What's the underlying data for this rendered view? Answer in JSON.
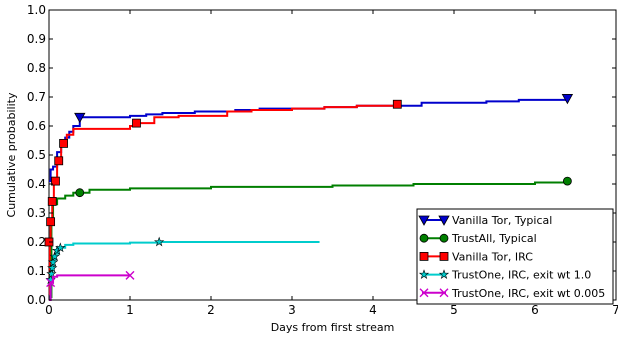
{
  "chart_data": {
    "type": "line",
    "title": "",
    "xlabel": "Days from first stream",
    "ylabel": "Cumulative probability",
    "xlim": [
      0,
      7
    ],
    "ylim": [
      0,
      1.0
    ],
    "xticks": [
      0,
      1,
      2,
      3,
      4,
      5,
      6,
      7
    ],
    "xtick_labels": [
      "0",
      "1",
      "2",
      "3",
      "4",
      "5",
      "6",
      "7"
    ],
    "yticks": [
      0,
      0.1,
      0.2,
      0.3,
      0.4,
      0.5,
      0.6,
      0.7,
      0.8,
      0.9,
      1.0
    ],
    "ytick_labels": [
      "0.0",
      "0.1",
      "0.2",
      "0.3",
      "0.4",
      "0.5",
      "0.6",
      "0.7",
      "0.8",
      "0.9",
      "1.0"
    ],
    "grid": false,
    "legend_position": "bottom-right",
    "series": [
      {
        "name": "Vanilla Tor, Typical",
        "color": "#0000cc",
        "marker": "triangle-down",
        "step": true,
        "x": [
          0,
          0.02,
          0.05,
          0.1,
          0.15,
          0.2,
          0.25,
          0.3,
          0.38,
          0.6,
          0.8,
          1.0,
          1.2,
          1.4,
          1.6,
          1.8,
          2.0,
          2.3,
          2.6,
          3.0,
          3.4,
          3.8,
          4.2,
          4.6,
          5.0,
          5.4,
          5.8,
          6.2,
          6.4
        ],
        "y": [
          0.41,
          0.45,
          0.46,
          0.51,
          0.53,
          0.56,
          0.58,
          0.6,
          0.63,
          0.63,
          0.63,
          0.635,
          0.64,
          0.645,
          0.645,
          0.65,
          0.65,
          0.655,
          0.66,
          0.66,
          0.665,
          0.67,
          0.67,
          0.68,
          0.68,
          0.685,
          0.69,
          0.69,
          0.695
        ],
        "marker_points": [
          [
            0.38,
            0.63
          ],
          [
            6.4,
            0.695
          ]
        ]
      },
      {
        "name": "TrustAll, Typical",
        "color": "#007f00",
        "marker": "circle",
        "step": true,
        "x": [
          0,
          0.03,
          0.05,
          0.1,
          0.2,
          0.3,
          0.5,
          0.8,
          1.0,
          1.5,
          2.0,
          2.5,
          3.0,
          3.5,
          4.0,
          4.5,
          5.0,
          5.5,
          6.0,
          6.4
        ],
        "y": [
          0.01,
          0.28,
          0.33,
          0.35,
          0.36,
          0.37,
          0.38,
          0.38,
          0.385,
          0.385,
          0.39,
          0.39,
          0.39,
          0.395,
          0.395,
          0.4,
          0.4,
          0.4,
          0.405,
          0.41
        ],
        "marker_points": [
          [
            0.38,
            0.37
          ],
          [
            6.4,
            0.41
          ]
        ]
      },
      {
        "name": "Vanilla Tor, IRC",
        "color": "#ff0000",
        "marker": "square",
        "step": true,
        "x": [
          0,
          0.01,
          0.02,
          0.04,
          0.06,
          0.1,
          0.15,
          0.22,
          0.3,
          0.5,
          0.8,
          1.0,
          1.1,
          1.3,
          1.6,
          2.0,
          2.2,
          2.5,
          3.0,
          3.4,
          3.8,
          4.3
        ],
        "y": [
          0.02,
          0.2,
          0.27,
          0.34,
          0.41,
          0.48,
          0.54,
          0.57,
          0.59,
          0.59,
          0.59,
          0.6,
          0.61,
          0.63,
          0.635,
          0.635,
          0.65,
          0.655,
          0.66,
          0.665,
          0.67,
          0.675
        ],
        "marker_points": [
          [
            0.0,
            0.2
          ],
          [
            0.02,
            0.27
          ],
          [
            0.04,
            0.34
          ],
          [
            0.08,
            0.41
          ],
          [
            0.12,
            0.48
          ],
          [
            0.18,
            0.54
          ],
          [
            1.08,
            0.61
          ],
          [
            4.3,
            0.675
          ]
        ]
      },
      {
        "name": "TrustOne, IRC, exit wt 1.0",
        "color": "#00cccc",
        "marker": "star",
        "step": true,
        "x": [
          0,
          0.02,
          0.04,
          0.06,
          0.08,
          0.12,
          0.2,
          0.3,
          0.5,
          1.0,
          1.36,
          2.0,
          2.5,
          3.0,
          3.34
        ],
        "y": [
          0.0,
          0.07,
          0.11,
          0.14,
          0.16,
          0.18,
          0.19,
          0.195,
          0.195,
          0.198,
          0.2,
          0.2,
          0.2,
          0.2,
          0.2
        ],
        "marker_points": [
          [
            0.02,
            0.07
          ],
          [
            0.03,
            0.09
          ],
          [
            0.04,
            0.11
          ],
          [
            0.05,
            0.13
          ],
          [
            0.07,
            0.15
          ],
          [
            0.1,
            0.17
          ],
          [
            0.14,
            0.18
          ],
          [
            1.36,
            0.2
          ]
        ]
      },
      {
        "name": "TrustOne, IRC, exit wt 0.005",
        "color": "#cc00cc",
        "marker": "x",
        "step": true,
        "x": [
          0,
          0.02,
          0.05,
          0.1,
          0.3,
          0.6,
          1.0
        ],
        "y": [
          0.0,
          0.06,
          0.08,
          0.085,
          0.085,
          0.085,
          0.085
        ],
        "marker_points": [
          [
            0.02,
            0.06
          ],
          [
            1.0,
            0.085
          ]
        ]
      }
    ]
  }
}
